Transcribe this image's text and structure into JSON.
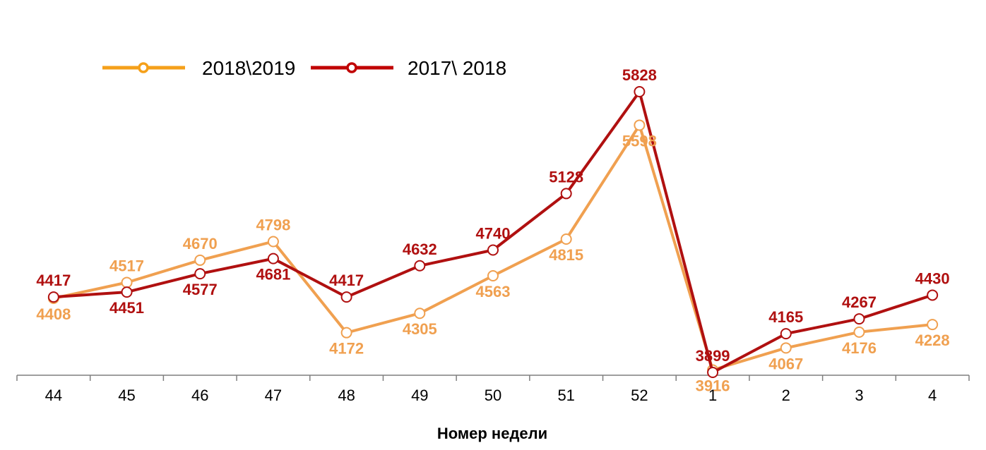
{
  "chart_data": {
    "type": "line",
    "xlabel": "Номер недели",
    "ylabel": "",
    "categories": [
      "44",
      "45",
      "46",
      "47",
      "48",
      "49",
      "50",
      "51",
      "52",
      "1",
      "2",
      "3",
      "4"
    ],
    "series": [
      {
        "name": "2018\\2019",
        "color": "#F0A050",
        "legend_color": "#F5A01A",
        "values": [
          4408,
          4517,
          4670,
          4798,
          4172,
          4305,
          4563,
          4815,
          5598,
          3916,
          4067,
          4176,
          4228
        ]
      },
      {
        "name": "2017\\ 2018",
        "color": "#B01010",
        "legend_color": "#C00000",
        "values": [
          4417,
          4451,
          4577,
          4681,
          4417,
          4632,
          4740,
          5128,
          5828,
          3899,
          4165,
          4267,
          4430
        ]
      }
    ],
    "ylim": [
      3899,
      5828
    ],
    "grid": false,
    "legend_position": "top-left"
  }
}
